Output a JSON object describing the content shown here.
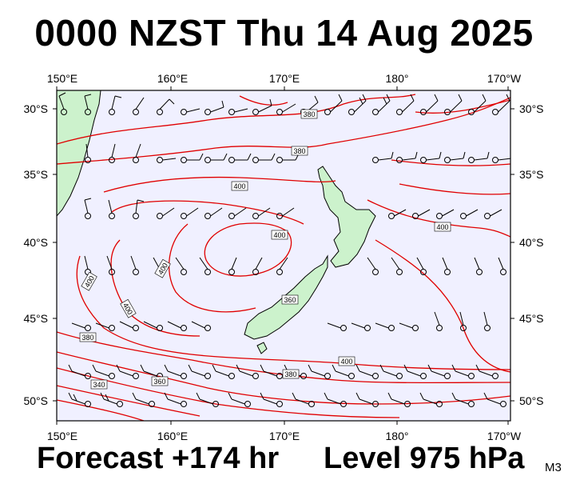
{
  "title": "0000 NZST Thu 14 Aug 2025",
  "footer": {
    "forecast": "Forecast +174 hr",
    "level": "Level 975 hPa",
    "code": "M3"
  },
  "axes": {
    "lon_labels": [
      "150°E",
      "160°E",
      "170°E",
      "180°",
      "170°W"
    ],
    "lat_labels": [
      "30°S",
      "35°S",
      "40°S",
      "45°S",
      "50°S"
    ]
  },
  "contour_labels": [
    "380",
    "380",
    "400",
    "400",
    "400",
    "400",
    "400",
    "400",
    "400",
    "380",
    "380",
    "360",
    "340",
    "360"
  ],
  "colors": {
    "ocean": "#f0f0ff",
    "land": "#ccf2cc",
    "contour": "#e00000",
    "barb": "#000000"
  }
}
